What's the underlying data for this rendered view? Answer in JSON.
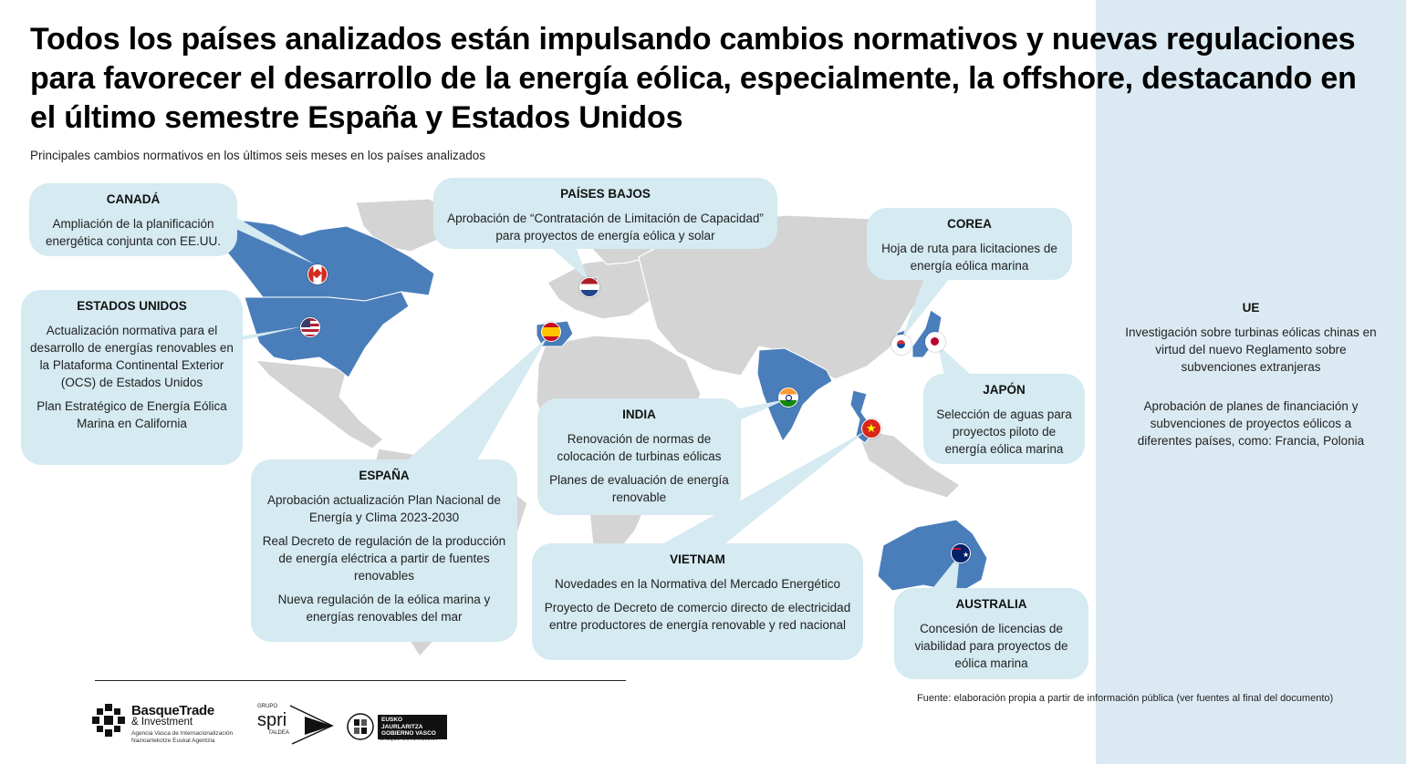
{
  "title": "Todos los países analizados están impulsando cambios normativos y nuevas regulaciones para favorecer el desarrollo de la energía eólica, especialmente, la offshore, destacando en el último semestre España y Estados Unidos",
  "subtitle": "Principales cambios normativos en los últimos seis meses en los países analizados",
  "colors": {
    "highlight_country": "#4a7ebb",
    "land": "#d4d4d4",
    "card": "#d5eaf1",
    "side_panel": "#dbeaf2"
  },
  "cards": {
    "canada": {
      "title": "CANADÁ",
      "items": [
        "Ampliación de la planificación energética conjunta con EE.UU."
      ]
    },
    "usa": {
      "title": "ESTADOS UNIDOS",
      "items": [
        "Actualización normativa para el desarrollo de energías renovables en la Plataforma Continental Exterior (OCS) de Estados Unidos",
        "Plan Estratégico de Energía Eólica Marina en California"
      ]
    },
    "netherlands": {
      "title": "PAÍSES BAJOS",
      "items": [
        "Aprobación de “Contratación de Limitación de Capacidad” para proyectos de energía eólica y solar"
      ]
    },
    "korea": {
      "title": "COREA",
      "items": [
        "Hoja de ruta para licitaciones de energía eólica marina"
      ]
    },
    "japan": {
      "title": "JAPÓN",
      "items": [
        "Selección de aguas para proyectos piloto de energía eólica marina"
      ]
    },
    "india": {
      "title": "INDIA",
      "items": [
        "Renovación de normas de colocación de turbinas eólicas",
        "Planes de evaluación de energía renovable"
      ]
    },
    "spain": {
      "title": "ESPAÑA",
      "items": [
        "Aprobación actualización Plan Nacional de Energía y Clima 2023-2030",
        "Real Decreto de regulación de la producción de energía eléctrica a partir de fuentes renovables",
        "Nueva regulación de la eólica marina y energías renovables del mar"
      ]
    },
    "vietnam": {
      "title": "VIETNAM",
      "items": [
        "Novedades en la Normativa del Mercado Energético",
        "Proyecto de Decreto de comercio directo de electricidad entre productores de energía renovable y red nacional"
      ]
    },
    "australia": {
      "title": "AUSTRALIA",
      "items": [
        "Concesión de licencias de viabilidad para proyectos de eólica marina"
      ]
    }
  },
  "ue": {
    "title": "UE",
    "items": [
      "Investigación sobre turbinas eólicas chinas en virtud del nuevo Reglamento sobre subvenciones extranjeras",
      "Aprobación de planes de financiación y subvenciones de proyectos eólicos a diferentes países, como: Francia, Polonia"
    ]
  },
  "source": "Fuente: elaboración propia a partir de información pública (ver fuentes al final del documento)",
  "logos": {
    "basque_trade": {
      "name": "BasqueTrade",
      "line2": "& Investment",
      "sub1": "Agencia Vasca de Internacionalización",
      "sub2": "Nazioartekotze Euskal Agentzia"
    },
    "spri": {
      "grupo": "GRUPO",
      "name": "spri",
      "taldea": "TALDEA"
    },
    "gobierno_vasco": {
      "line1": "EUSKO JAURLARITZA",
      "line2": "GOBIERNO VASCO",
      "line3": "BASQUE GOVERNMENT"
    }
  }
}
